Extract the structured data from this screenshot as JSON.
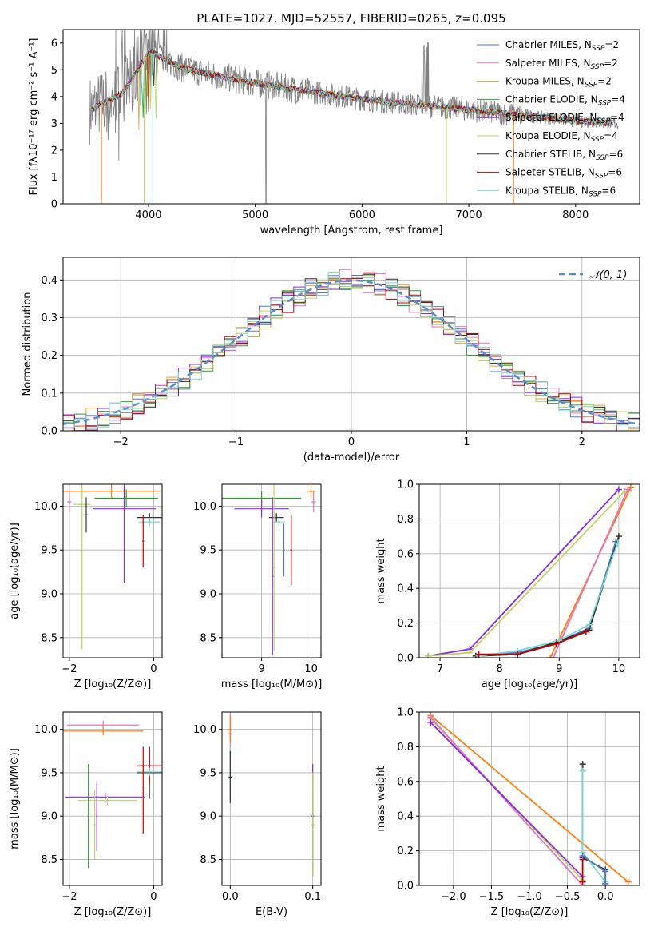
{
  "title": "PLATE=1027, MJD=52557, FIBERID=0265, z=0.095",
  "colors": {
    "chabrier_miles": "#4f7bc8",
    "salpeter_miles": "#e377c2",
    "kroupa_miles": "#e8a33c",
    "chabrier_elodie": "#2ca02c",
    "salpeter_elodie": "#8a2be2",
    "kroupa_elodie": "#bcd35f",
    "chabrier_stelib": "#333333",
    "salpeter_stelib": "#c00000",
    "kroupa_stelib": "#7fd6d6",
    "data": "#808080",
    "gauss": "#5b8bd0",
    "fit_orange": "#ff7f0e"
  },
  "legend_spectrum": [
    {
      "name": "Chabrier MILES, N",
      "sub": "SSP",
      "tail": "=2",
      "color_key": "chabrier_miles"
    },
    {
      "name": "Salpeter MILES, N",
      "sub": "SSP",
      "tail": "=2",
      "color_key": "salpeter_miles"
    },
    {
      "name": "Kroupa MILES, N",
      "sub": "SSP",
      "tail": "=2",
      "color_key": "kroupa_miles"
    },
    {
      "name": "Chabrier ELODIE, N",
      "sub": "SSP",
      "tail": "=4",
      "color_key": "chabrier_elodie"
    },
    {
      "name": "Salpeter ELODIE, N",
      "sub": "SSP",
      "tail": "=4",
      "color_key": "salpeter_elodie"
    },
    {
      "name": "Kroupa ELODIE, N",
      "sub": "SSP",
      "tail": "=4",
      "color_key": "kroupa_elodie"
    },
    {
      "name": "Chabrier STELIB, N",
      "sub": "SSP",
      "tail": "=6",
      "color_key": "chabrier_stelib"
    },
    {
      "name": "Salpeter STELIB, N",
      "sub": "SSP",
      "tail": "=6",
      "color_key": "salpeter_stelib"
    },
    {
      "name": "Kroupa STELIB, N",
      "sub": "SSP",
      "tail": "=6",
      "color_key": "kroupa_stelib"
    }
  ],
  "chart_data": [
    {
      "id": "spectrum",
      "type": "line",
      "xlabel": "wavelength [Angstrom, rest frame]",
      "ylabel": "Flux [fλ10⁻¹⁷ erg cm⁻² s⁻¹ A⁻¹]",
      "xlim": [
        3200,
        8600
      ],
      "ylim": [
        0,
        6.5
      ],
      "xticks": [
        4000,
        5000,
        6000,
        7000,
        8000
      ],
      "yticks": [
        0,
        1,
        2,
        3,
        4,
        5,
        6
      ],
      "continuum": {
        "x": [
          3450,
          3600,
          3750,
          3900,
          4000,
          4100,
          4300,
          4500,
          5000,
          5500,
          6000,
          6500,
          7000,
          7500,
          8000,
          8400
        ],
        "y": [
          3.5,
          3.8,
          4.1,
          5.0,
          5.7,
          5.5,
          5.1,
          4.9,
          4.5,
          4.2,
          3.9,
          3.7,
          3.5,
          3.3,
          3.1,
          3.0
        ]
      }
    },
    {
      "id": "residuals",
      "type": "histogram",
      "xlabel": "(data-model)/error",
      "ylabel": "Normed distribution",
      "xlim": [
        -2.5,
        2.5
      ],
      "ylim": [
        0,
        0.46
      ],
      "xticks": [
        -2,
        -1,
        0,
        1,
        2
      ],
      "yticks": [
        0.0,
        0.1,
        0.2,
        0.3,
        0.4
      ],
      "legend": "𝒩(0, 1)",
      "series_centers": [
        -2.45,
        -2.35,
        -2.25,
        -2.15,
        -2.05,
        -1.95,
        -1.85,
        -1.75,
        -1.65,
        -1.55,
        -1.45,
        -1.35,
        -1.25,
        -1.15,
        -1.05,
        -0.95,
        -0.85,
        -0.75,
        -0.65,
        -0.55,
        -0.45,
        -0.35,
        -0.25,
        -0.15,
        -0.05,
        0.05,
        0.15,
        0.25,
        0.35,
        0.45,
        0.55,
        0.65,
        0.75,
        0.85,
        0.95,
        1.05,
        1.15,
        1.25,
        1.35,
        1.45,
        1.55,
        1.65,
        1.75,
        1.85,
        1.95,
        2.05,
        2.15,
        2.25,
        2.35,
        2.45
      ]
    },
    {
      "id": "age_vs_Z",
      "type": "errorbar",
      "xlabel": "Z [log₁₀(Z/Z⊙)]",
      "ylabel": "age  [log₁₀(age/yr)]",
      "xlim": [
        -2.15,
        0.2
      ],
      "ylim": [
        8.27,
        10.25
      ],
      "xticks": [
        -2,
        0
      ],
      "yticks": [
        8.5,
        9.0,
        9.5,
        10.0
      ]
    },
    {
      "id": "age_vs_mass",
      "type": "errorbar",
      "xlabel": "mass [log₁₀(M/M⊙)]",
      "ylabel": "",
      "xlim": [
        8.2,
        10.2
      ],
      "ylim": [
        8.27,
        10.25
      ],
      "xticks": [
        9,
        10
      ],
      "yticks": [
        8.5,
        9.0,
        9.5,
        10.0
      ]
    },
    {
      "id": "weight_vs_age",
      "type": "line",
      "xlabel": "age  [log₁₀(age/yr)]",
      "ylabel": "mass weight",
      "xlim": [
        6.65,
        10.35
      ],
      "ylim": [
        0,
        1.0
      ],
      "xticks": [
        7,
        8,
        9,
        10
      ],
      "yticks": [
        0.0,
        0.2,
        0.4,
        0.6,
        0.8,
        1.0
      ],
      "series": [
        {
          "color_key": "salpeter_elodie",
          "x": [
            6.8,
            7.5,
            10.0
          ],
          "y": [
            0.01,
            0.05,
            0.97
          ]
        },
        {
          "color_key": "kroupa_elodie",
          "x": [
            6.8,
            7.5,
            10.1
          ],
          "y": [
            0.01,
            0.03,
            0.96
          ]
        },
        {
          "color_key": "fit_orange",
          "x": [
            8.85,
            10.2
          ],
          "y": [
            0.0,
            0.98
          ]
        },
        {
          "color_key": "salpeter_miles",
          "x": [
            8.9,
            10.15
          ],
          "y": [
            0.0,
            0.97
          ]
        },
        {
          "color_key": "chabrier_miles",
          "x": [
            7.6,
            8.3,
            8.9,
            9.5,
            9.95
          ],
          "y": [
            0.01,
            0.03,
            0.08,
            0.17,
            0.67
          ]
        },
        {
          "color_key": "chabrier_stelib",
          "x": [
            7.6,
            8.3,
            8.95,
            9.5,
            10.0
          ],
          "y": [
            0.01,
            0.02,
            0.09,
            0.16,
            0.7
          ]
        },
        {
          "color_key": "kroupa_stelib",
          "x": [
            7.65,
            8.3,
            9.0,
            9.5,
            9.98
          ],
          "y": [
            0.01,
            0.04,
            0.1,
            0.19,
            0.66
          ]
        },
        {
          "color_key": "salpeter_stelib",
          "x": [
            7.65,
            8.3,
            8.95,
            9.45
          ],
          "y": [
            0.02,
            0.02,
            0.08,
            0.15
          ]
        }
      ]
    },
    {
      "id": "mass_vs_Z",
      "type": "errorbar",
      "xlabel": "Z [log₁₀(Z/Z⊙)]",
      "ylabel": "mass [log₁₀(M/M⊙)]",
      "xlim": [
        -2.15,
        0.2
      ],
      "ylim": [
        8.2,
        10.2
      ],
      "xticks": [
        -2,
        0
      ],
      "yticks": [
        8.5,
        9.0,
        9.5,
        10.0
      ]
    },
    {
      "id": "mass_vs_EBV",
      "type": "errorbar",
      "xlabel": "E(B-V)",
      "ylabel": "",
      "xlim": [
        -0.01,
        0.11
      ],
      "ylim": [
        8.2,
        10.2
      ],
      "xticks": [
        0.0,
        0.1
      ],
      "xticklabels": [
        "0.0",
        "0.1"
      ],
      "yticks": [
        8.5,
        9.0,
        9.5,
        10.0
      ]
    },
    {
      "id": "weight_vs_Z",
      "type": "line",
      "xlabel": "Z [log₁₀(Z/Z⊙)]",
      "ylabel": "mass weight",
      "xlim": [
        -2.45,
        0.45
      ],
      "ylim": [
        0,
        1.0
      ],
      "xticks": [
        -2.0,
        -1.5,
        -1.0,
        -0.5,
        0.0
      ],
      "xticklabels": [
        "−2.0",
        "−1.5",
        "−1.0",
        "−0.5",
        "0.0"
      ],
      "yticks": [
        0.0,
        0.2,
        0.4,
        0.6,
        0.8,
        1.0
      ],
      "series": [
        {
          "color_key": "fit_orange",
          "x": [
            -2.3,
            0.3
          ],
          "y": [
            0.98,
            0.02
          ]
        },
        {
          "color_key": "kroupa_elodie",
          "x": [
            -2.3,
            -0.3
          ],
          "y": [
            0.96,
            0.03
          ]
        },
        {
          "color_key": "salpeter_miles",
          "x": [
            -2.3,
            -0.3
          ],
          "y": [
            0.97,
            0.0
          ]
        },
        {
          "color_key": "salpeter_elodie",
          "x": [
            -2.3,
            -0.3
          ],
          "y": [
            0.94,
            0.05
          ]
        },
        {
          "color_key": "chabrier_stelib",
          "x": [
            -0.3,
            -0.3,
            0.0,
            0.0
          ],
          "y": [
            0.7,
            0.16,
            0.09,
            0.01
          ]
        },
        {
          "color_key": "kroupa_stelib",
          "x": [
            -0.3,
            -0.3,
            0.0
          ],
          "y": [
            0.66,
            0.19,
            0.02
          ]
        },
        {
          "color_key": "salpeter_stelib",
          "x": [
            -0.3,
            -0.3
          ],
          "y": [
            0.15,
            0.02
          ]
        },
        {
          "color_key": "chabrier_miles",
          "x": [
            -0.3,
            0.0,
            0.0
          ],
          "y": [
            0.17,
            0.08,
            0.01
          ]
        }
      ]
    }
  ]
}
